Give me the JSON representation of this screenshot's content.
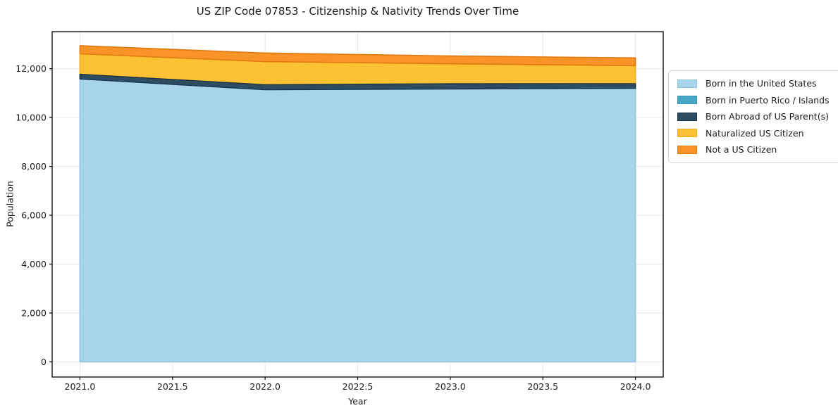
{
  "chart_data": {
    "type": "area",
    "stacked": true,
    "title": "US ZIP Code 07853 - Citizenship & Nativity Trends Over Time",
    "xlabel": "Year",
    "ylabel": "Population",
    "x": [
      2021,
      2022,
      2023,
      2024
    ],
    "series": [
      {
        "name": "Born in the United States",
        "values": [
          11580,
          11140,
          11170,
          11200
        ],
        "fill": "#a7d4e8",
        "edge": "#8fc3dd"
      },
      {
        "name": "Born in Puerto Rico / Islands",
        "values": [
          0,
          0,
          0,
          0
        ],
        "fill": "#46a8c6",
        "edge": "#3995b3"
      },
      {
        "name": "Born Abroad of US Parent(s)",
        "values": [
          190,
          200,
          210,
          185
        ],
        "fill": "#2b4c61",
        "edge": "#16334a"
      },
      {
        "name": "Naturalized US Citizen",
        "values": [
          840,
          950,
          820,
          740
        ],
        "fill": "#fcc233",
        "edge": "#edaa1f"
      },
      {
        "name": "Not a US Citizen",
        "values": [
          330,
          350,
          320,
          315
        ],
        "fill": "#f79327",
        "edge": "#e2790f"
      }
    ],
    "totals": [
      12940,
      12640,
      12520,
      12440
    ],
    "x_ticks": [
      2021.0,
      2021.5,
      2022.0,
      2022.5,
      2023.0,
      2023.5,
      2024.0
    ],
    "y_ticks": [
      0,
      2000,
      4000,
      6000,
      8000,
      10000,
      12000
    ],
    "xlim": [
      2020.85,
      2024.15
    ],
    "ylim": [
      -620,
      13515
    ],
    "grid": true,
    "grid_color": "#e7e7e7",
    "axis_color": "#000000",
    "text_color": "#1a1a1a",
    "legend_position": "right-outside"
  }
}
